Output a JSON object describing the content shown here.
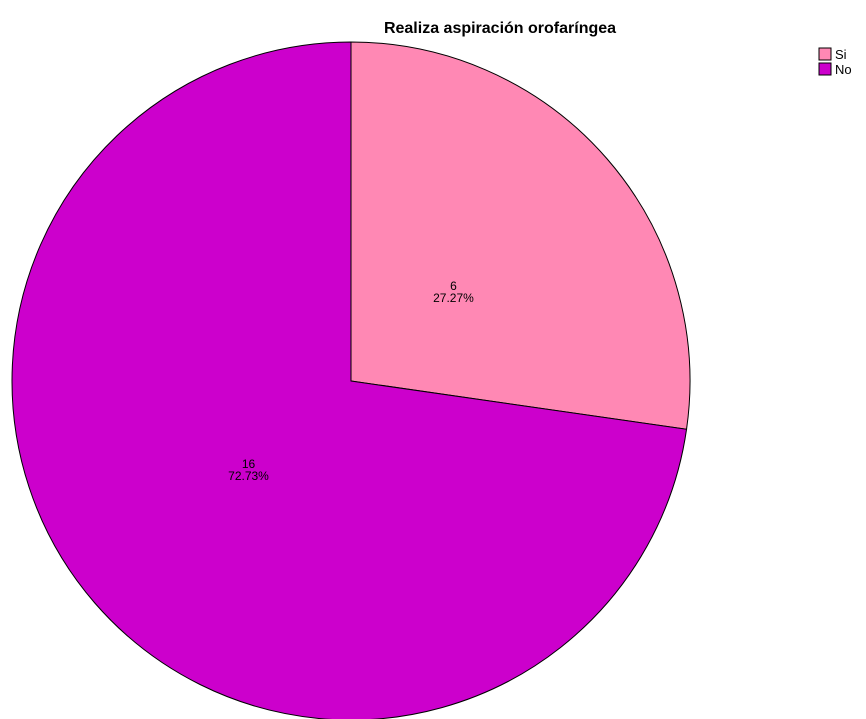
{
  "chart_data": {
    "type": "pie",
    "title": "Realiza aspiración orofaríngea",
    "slices": [
      {
        "label": "Si",
        "value": 6,
        "percent_label": "27.27%",
        "color": "#ff88b4"
      },
      {
        "label": "No",
        "value": 16,
        "percent_label": "72.73%",
        "color": "#cc00cc"
      }
    ],
    "legend_placement": "top-right",
    "start_angle_deg": 0,
    "direction": "clockwise"
  }
}
